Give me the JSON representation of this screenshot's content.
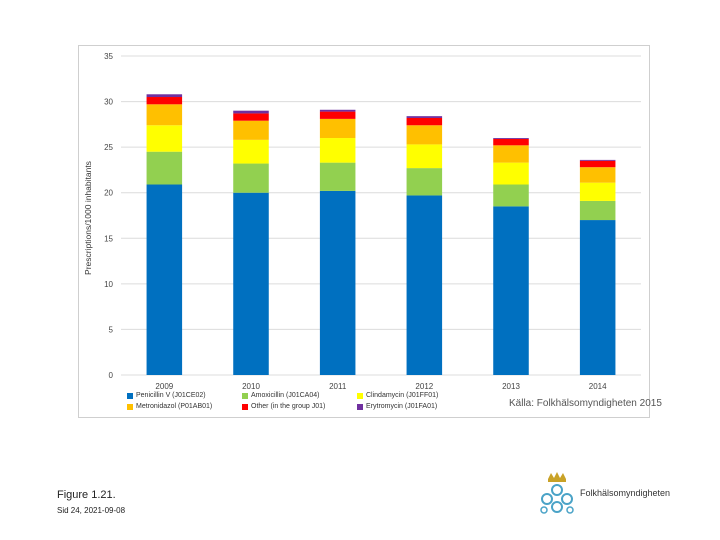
{
  "chart_data": {
    "type": "bar",
    "stacked": true,
    "title": "",
    "xlabel": "",
    "ylabel": "Prescriptions/1000 inhabitants",
    "ylim": [
      0,
      35
    ],
    "yticks": [
      0,
      5,
      10,
      15,
      20,
      25,
      30,
      35
    ],
    "grid": true,
    "categories": [
      "2009",
      "2010",
      "2011",
      "2012",
      "2013",
      "2014"
    ],
    "series": [
      {
        "name": "Penicillin V (J01CE02)",
        "color": "#0070c0",
        "values": [
          20.9,
          20.0,
          20.2,
          19.7,
          18.5,
          17.0
        ]
      },
      {
        "name": "Amoxicillin (J01CA04)",
        "color": "#92d050",
        "values": [
          3.6,
          3.2,
          3.1,
          3.0,
          2.4,
          2.1
        ]
      },
      {
        "name": "Clindamycin (J01FF01)",
        "color": "#ffff00",
        "values": [
          2.9,
          2.6,
          2.7,
          2.6,
          2.4,
          2.0
        ]
      },
      {
        "name": "Metronidazol (P01AB01)",
        "color": "#ffc000",
        "values": [
          2.3,
          2.1,
          2.1,
          2.1,
          1.9,
          1.7
        ]
      },
      {
        "name": "Other (in the group J01)",
        "color": "#ff0000",
        "values": [
          0.8,
          0.8,
          0.8,
          0.8,
          0.7,
          0.7
        ]
      },
      {
        "name": "Erytromycin (J01FA01)",
        "color": "#7030a0",
        "values": [
          0.3,
          0.3,
          0.2,
          0.2,
          0.1,
          0.1
        ]
      }
    ],
    "legend_order": [
      "Penicillin V (J01CE02)",
      "Amoxicillin (J01CA04)",
      "Clindamycin (J01FF01)",
      "Metronidazol (P01AB01)",
      "Other (in the group J01)",
      "Erytromycin (J01FA01)"
    ],
    "legend_position": "bottom-left",
    "source": "Källa: Folkhälsomyndigheten 2015"
  },
  "figure": {
    "title": "Figure 1.21.",
    "date": "Sid 24, 2021-09-08"
  },
  "logo": {
    "text": "Folkhälsomyndigheten",
    "icon": "crown-emblem-icon"
  }
}
